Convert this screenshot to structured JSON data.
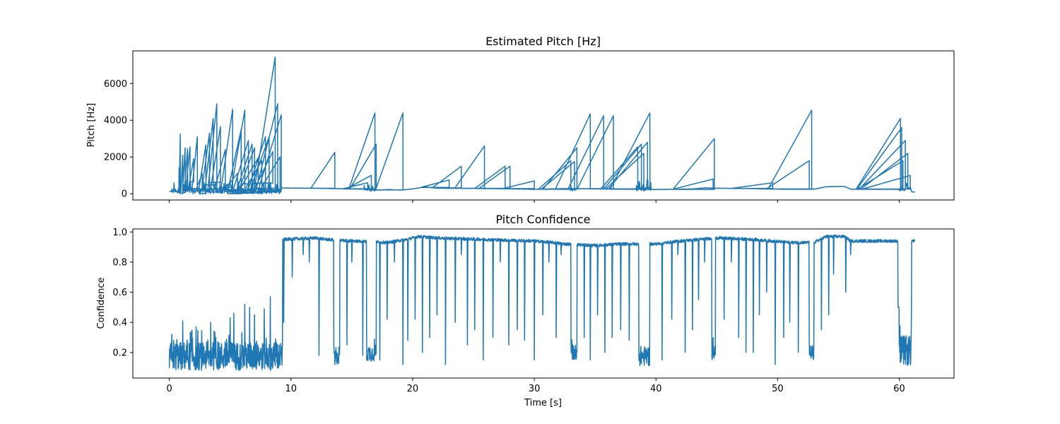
{
  "colors": {
    "series": "#1f77b4",
    "axes": "#000000",
    "background": "#ffffff"
  },
  "chart_data": [
    {
      "type": "line",
      "title": "Estimated Pitch [Hz]",
      "xlabel": "",
      "ylabel": "Pitch [Hz]",
      "xlim": [
        -3,
        64.5
      ],
      "ylim": [
        -340,
        7780
      ],
      "xticks": [
        0,
        10,
        20,
        30,
        40,
        50,
        60
      ],
      "xtick_labels_visible": false,
      "yticks": [
        0,
        2000,
        4000,
        6000
      ],
      "ytick_labels": [
        "0",
        "2000",
        "4000",
        "6000"
      ],
      "grid": false,
      "legend": "none",
      "baseline": [
        [
          0,
          120
        ],
        [
          9.2,
          300
        ],
        [
          9.3,
          310
        ],
        [
          12,
          300
        ],
        [
          16,
          250
        ],
        [
          17.2,
          200
        ],
        [
          18,
          230
        ],
        [
          19,
          200
        ],
        [
          20,
          260
        ],
        [
          21,
          380
        ],
        [
          22,
          300
        ],
        [
          25,
          290
        ],
        [
          28,
          270
        ],
        [
          30,
          240
        ],
        [
          32,
          270
        ],
        [
          33,
          280
        ],
        [
          36,
          260
        ],
        [
          40,
          230
        ],
        [
          43,
          260
        ],
        [
          44,
          320
        ],
        [
          45,
          300
        ],
        [
          48,
          280
        ],
        [
          50,
          250
        ],
        [
          52,
          240
        ],
        [
          53,
          250
        ],
        [
          54,
          380
        ],
        [
          55.5,
          400
        ],
        [
          56,
          250
        ],
        [
          60,
          240
        ],
        [
          60.5,
          250
        ],
        [
          61,
          100
        ],
        [
          61.3,
          90
        ]
      ],
      "spikes": [
        [
          0.8,
          1400
        ],
        [
          0.9,
          3250
        ],
        [
          1.1,
          2100
        ],
        [
          1.3,
          2500
        ],
        [
          1.5,
          2450
        ],
        [
          1.7,
          2550
        ],
        [
          2.0,
          1900
        ],
        [
          2.3,
          3100
        ],
        [
          2.7,
          1100
        ],
        [
          3.0,
          2650
        ],
        [
          3.3,
          3300
        ],
        [
          3.6,
          4100
        ],
        [
          3.9,
          4900
        ],
        [
          4.2,
          3650
        ],
        [
          4.6,
          2400
        ],
        [
          5.0,
          600
        ],
        [
          5.2,
          4600
        ],
        [
          5.6,
          1100
        ],
        [
          5.9,
          3500
        ],
        [
          6.2,
          4550
        ],
        [
          6.5,
          2900
        ],
        [
          6.8,
          2700
        ],
        [
          7.0,
          2500
        ],
        [
          7.3,
          1950
        ],
        [
          7.6,
          1800
        ],
        [
          7.9,
          3100
        ],
        [
          8.2,
          3100
        ],
        [
          8.5,
          2300
        ],
        [
          8.7,
          7450
        ],
        [
          8.9,
          4900
        ],
        [
          9.1,
          2000
        ],
        [
          9.2,
          4300
        ],
        [
          13.6,
          2250
        ],
        [
          16.3,
          600
        ],
        [
          16.6,
          1000
        ],
        [
          16.9,
          4400
        ],
        [
          17.0,
          2700
        ],
        [
          19.2,
          4400
        ],
        [
          23.0,
          750
        ],
        [
          24.0,
          1500
        ],
        [
          25.9,
          2600
        ],
        [
          27.6,
          1500
        ],
        [
          28.0,
          1500
        ],
        [
          30.0,
          700
        ],
        [
          33.0,
          1800
        ],
        [
          33.3,
          1750
        ],
        [
          33.5,
          2500
        ],
        [
          34.6,
          4350
        ],
        [
          35.7,
          4250
        ],
        [
          36.5,
          4250
        ],
        [
          38.5,
          2550
        ],
        [
          38.8,
          2700
        ],
        [
          39.0,
          2200
        ],
        [
          39.3,
          2800
        ],
        [
          39.5,
          4400
        ],
        [
          44.7,
          800
        ],
        [
          44.8,
          3000
        ],
        [
          49.6,
          600
        ],
        [
          52.6,
          1800
        ],
        [
          52.8,
          4550
        ],
        [
          60.1,
          4100
        ],
        [
          60.2,
          3600
        ],
        [
          60.3,
          1800
        ],
        [
          60.5,
          2900
        ],
        [
          60.7,
          2200
        ],
        [
          60.9,
          1000
        ]
      ],
      "noisy_regions": [
        [
          0.2,
          9.2,
          0,
          700
        ],
        [
          16.0,
          16.9,
          150,
          500
        ],
        [
          32.9,
          33.5,
          150,
          500
        ],
        [
          38.4,
          39.6,
          150,
          800
        ],
        [
          60.0,
          61.0,
          150,
          600
        ]
      ]
    },
    {
      "type": "line",
      "title": "Pitch Confidence",
      "xlabel": "Time [s]",
      "ylabel": "Confidence",
      "xlim": [
        -3,
        64.5
      ],
      "ylim": [
        0.03,
        1.02
      ],
      "xticks": [
        0,
        10,
        20,
        30,
        40,
        50,
        60
      ],
      "xtick_labels": [
        "0",
        "10",
        "20",
        "30",
        "40",
        "50",
        "60"
      ],
      "yticks": [
        0.2,
        0.4,
        0.6,
        0.8,
        1.0
      ],
      "ytick_labels": [
        "0.2",
        "0.4",
        "0.6",
        "0.8",
        "1.0"
      ],
      "grid": false,
      "legend": "none",
      "low_regions": [
        [
          0,
          9.3,
          0.08,
          0.35
        ],
        [
          13.5,
          14.0,
          0.12,
          0.3
        ],
        [
          16.2,
          17.0,
          0.14,
          0.3
        ],
        [
          33.0,
          33.5,
          0.15,
          0.3
        ],
        [
          38.6,
          39.5,
          0.11,
          0.3
        ],
        [
          44.6,
          44.9,
          0.15,
          0.3
        ],
        [
          52.6,
          53.0,
          0.14,
          0.3
        ],
        [
          60.0,
          61.0,
          0.11,
          0.4
        ]
      ],
      "low_peaks": [
        [
          1.1,
          0.41
        ],
        [
          2.2,
          0.37
        ],
        [
          3.4,
          0.4
        ],
        [
          5.0,
          0.43
        ],
        [
          5.3,
          0.46
        ],
        [
          6.2,
          0.52
        ],
        [
          6.6,
          0.5
        ],
        [
          7.0,
          0.45
        ],
        [
          7.8,
          0.49
        ],
        [
          8.3,
          0.57
        ],
        [
          61.0,
          0.46
        ]
      ],
      "high_dips": [
        [
          9.4,
          0.4
        ],
        [
          10.1,
          0.7
        ],
        [
          11.0,
          0.85
        ],
        [
          11.5,
          0.8
        ],
        [
          12.3,
          0.18
        ],
        [
          13.6,
          0.12
        ],
        [
          14.6,
          0.25
        ],
        [
          15.0,
          0.8
        ],
        [
          15.9,
          0.18
        ],
        [
          17.3,
          0.15
        ],
        [
          17.9,
          0.42
        ],
        [
          18.5,
          0.8
        ],
        [
          19.2,
          0.12
        ],
        [
          19.6,
          0.28
        ],
        [
          20.2,
          0.42
        ],
        [
          20.8,
          0.2
        ],
        [
          21.4,
          0.3
        ],
        [
          22.0,
          0.45
        ],
        [
          22.7,
          0.12
        ],
        [
          23.5,
          0.4
        ],
        [
          24.0,
          0.85
        ],
        [
          24.5,
          0.25
        ],
        [
          25.1,
          0.35
        ],
        [
          25.8,
          0.15
        ],
        [
          26.6,
          0.3
        ],
        [
          27.2,
          0.8
        ],
        [
          27.9,
          0.25
        ],
        [
          28.6,
          0.35
        ],
        [
          29.2,
          0.28
        ],
        [
          30.0,
          0.15
        ],
        [
          30.7,
          0.45
        ],
        [
          31.2,
          0.8
        ],
        [
          31.8,
          0.3
        ],
        [
          32.2,
          0.85
        ],
        [
          34.1,
          0.3
        ],
        [
          34.6,
          0.15
        ],
        [
          35.2,
          0.45
        ],
        [
          35.8,
          0.2
        ],
        [
          36.4,
          0.3
        ],
        [
          37.1,
          0.35
        ],
        [
          37.8,
          0.28
        ],
        [
          40.5,
          0.15
        ],
        [
          41.3,
          0.42
        ],
        [
          41.8,
          0.85
        ],
        [
          42.4,
          0.2
        ],
        [
          43.0,
          0.35
        ],
        [
          43.5,
          0.55
        ],
        [
          44.0,
          0.8
        ],
        [
          45.6,
          0.42
        ],
        [
          46.2,
          0.8
        ],
        [
          46.8,
          0.3
        ],
        [
          47.4,
          0.2
        ],
        [
          48.0,
          0.2
        ],
        [
          48.5,
          0.45
        ],
        [
          49.1,
          0.6
        ],
        [
          49.8,
          0.12
        ],
        [
          50.5,
          0.3
        ],
        [
          51.0,
          0.4
        ],
        [
          51.7,
          0.2
        ],
        [
          53.6,
          0.35
        ],
        [
          54.2,
          0.45
        ],
        [
          54.6,
          0.72
        ],
        [
          55.6,
          0.6
        ],
        [
          56.0,
          0.85
        ]
      ],
      "high_base": [
        [
          9.3,
          0.95
        ],
        [
          12.0,
          0.96
        ],
        [
          13.0,
          0.95
        ],
        [
          15.0,
          0.94
        ],
        [
          18.0,
          0.93
        ],
        [
          19.5,
          0.95
        ],
        [
          20.5,
          0.97
        ],
        [
          22.0,
          0.96
        ],
        [
          26.0,
          0.95
        ],
        [
          30.0,
          0.94
        ],
        [
          31.5,
          0.93
        ],
        [
          32.5,
          0.92
        ],
        [
          35.0,
          0.91
        ],
        [
          37.0,
          0.92
        ],
        [
          40.0,
          0.92
        ],
        [
          42.0,
          0.94
        ],
        [
          45.0,
          0.96
        ],
        [
          48.0,
          0.95
        ],
        [
          51.0,
          0.93
        ],
        [
          53.0,
          0.93
        ],
        [
          54.0,
          0.97
        ],
        [
          55.5,
          0.97
        ],
        [
          56.0,
          0.94
        ],
        [
          59.8,
          0.94
        ]
      ]
    }
  ]
}
